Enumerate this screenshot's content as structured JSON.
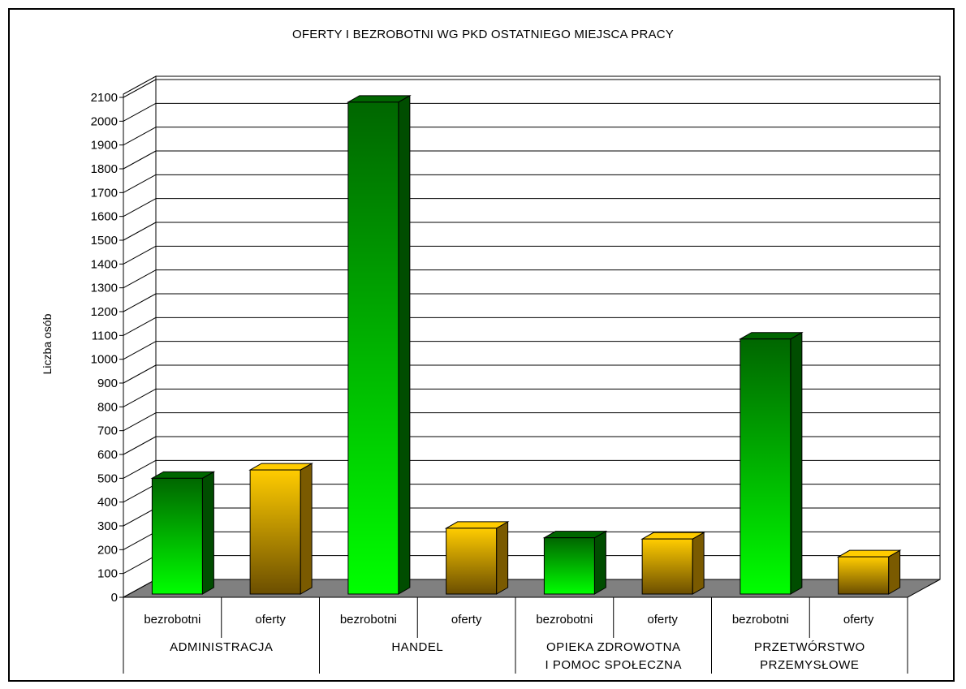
{
  "chart_data": {
    "type": "bar",
    "title": "OFERTY I BEZROBOTNI WG PKD OSTATNIEGO MIEJSCA PRACY",
    "ylabel": "Liczba osób",
    "xlabel": "",
    "ylim": [
      0,
      2100
    ],
    "ytick_step": 100,
    "grid": true,
    "legend": "none",
    "groups": [
      {
        "name_lines": [
          "ADMINISTRACJA"
        ]
      },
      {
        "name_lines": [
          "HANDEL"
        ]
      },
      {
        "name_lines": [
          "OPIEKA ZDROWOTNA",
          "I POMOC SPOŁECZNA"
        ]
      },
      {
        "name_lines": [
          "PRZETWÓRSTWO",
          "PRZEMYSŁOWE"
        ]
      }
    ],
    "categories": [
      "bezrobotni",
      "oferty",
      "bezrobotni",
      "oferty",
      "bezrobotni",
      "oferty",
      "bezrobotni",
      "oferty"
    ],
    "values": [
      500,
      535,
      2080,
      290,
      250,
      245,
      1085,
      170
    ],
    "bar_colors": {
      "bezrobotni": {
        "top": "#006600",
        "bottom": "#00ff00",
        "side": "#004d00"
      },
      "oferty": {
        "top": "#ffcc00",
        "bottom": "#6b4e00",
        "side": "#7a5a00"
      }
    },
    "floor_color": "#808080"
  }
}
